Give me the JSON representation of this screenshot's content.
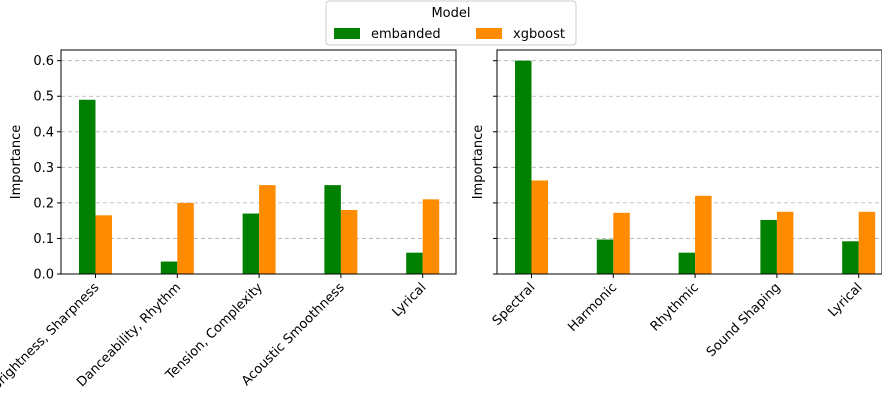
{
  "legend": {
    "title": "Model",
    "entries": [
      {
        "name": "embanded",
        "color": "#008000"
      },
      {
        "name": "xgboost",
        "color": "#ff8c00"
      }
    ]
  },
  "chart_data": [
    {
      "type": "bar",
      "categories": [
        "Brightness, Sharpness",
        "Danceability, Rhythm",
        "Tension, Complexity",
        "Acoustic Smoothness",
        "Lyrical"
      ],
      "series": [
        {
          "name": "embanded",
          "color": "#008000",
          "values": [
            0.49,
            0.035,
            0.17,
            0.25,
            0.06
          ]
        },
        {
          "name": "xgboost",
          "color": "#ff8c00",
          "values": [
            0.165,
            0.2,
            0.25,
            0.18,
            0.21
          ]
        }
      ],
      "ylabel": "Importance",
      "ylim": [
        0,
        0.63
      ],
      "yticks": [
        "0.0",
        "0.1",
        "0.2",
        "0.3",
        "0.4",
        "0.5",
        "0.6"
      ],
      "grid": "y-dashed"
    },
    {
      "type": "bar",
      "categories": [
        "Spectral",
        "Harmonic",
        "Rhythmic",
        "Sound Shaping",
        "Lyrical"
      ],
      "series": [
        {
          "name": "embanded",
          "color": "#008000",
          "values": [
            0.6,
            0.097,
            0.06,
            0.152,
            0.092
          ]
        },
        {
          "name": "xgboost",
          "color": "#ff8c00",
          "values": [
            0.263,
            0.172,
            0.22,
            0.175,
            0.175
          ]
        }
      ],
      "ylabel": "Importance",
      "ylim": [
        0,
        0.63
      ],
      "grid": "y-dashed"
    }
  ]
}
